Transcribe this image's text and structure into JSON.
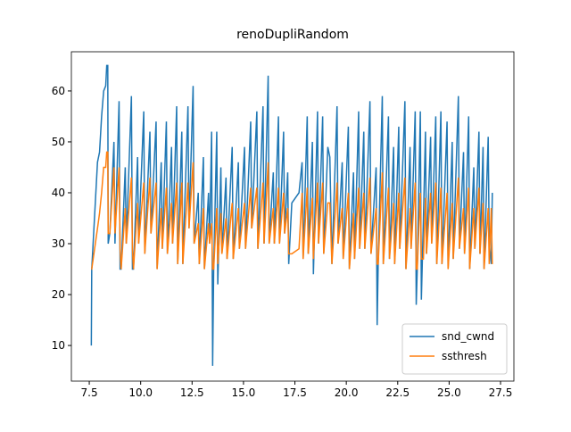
{
  "chart_data": {
    "type": "line",
    "title": "renoDupliRandom",
    "x": [
      7.6,
      7.62,
      7.9,
      8.0,
      8.1,
      8.2,
      8.3,
      8.35,
      8.4,
      8.42,
      8.5,
      8.7,
      8.75,
      8.95,
      9.0,
      9.05,
      9.25,
      9.3,
      9.55,
      9.6,
      9.65,
      9.85,
      9.9,
      10.15,
      10.2,
      10.45,
      10.5,
      10.75,
      10.8,
      11.0,
      11.05,
      11.25,
      11.3,
      11.5,
      11.55,
      11.75,
      11.8,
      12.0,
      12.05,
      12.3,
      12.35,
      12.55,
      12.6,
      12.8,
      12.85,
      13.05,
      13.1,
      13.3,
      13.35,
      13.45,
      13.5,
      13.55,
      13.7,
      13.75,
      13.9,
      13.95,
      14.15,
      14.2,
      14.45,
      14.5,
      14.75,
      14.8,
      15.05,
      15.1,
      15.35,
      15.4,
      15.65,
      15.7,
      15.95,
      16.0,
      16.2,
      16.25,
      16.45,
      16.5,
      16.7,
      16.75,
      16.95,
      17.0,
      17.15,
      17.2,
      17.35,
      17.7,
      17.85,
      17.9,
      18.1,
      18.15,
      18.35,
      18.4,
      18.6,
      18.65,
      18.85,
      18.9,
      19.1,
      19.2,
      19.3,
      19.55,
      19.6,
      19.8,
      19.85,
      20.1,
      20.15,
      20.35,
      20.4,
      20.6,
      20.65,
      20.85,
      20.9,
      21.15,
      21.2,
      21.45,
      21.5,
      21.55,
      21.75,
      21.8,
      22.05,
      22.1,
      22.3,
      22.35,
      22.55,
      22.6,
      22.85,
      22.9,
      23.1,
      23.15,
      23.35,
      23.4,
      23.45,
      23.6,
      23.65,
      23.75,
      23.85,
      23.9,
      24.1,
      24.15,
      24.35,
      24.4,
      24.6,
      24.65,
      24.9,
      24.95,
      25.15,
      25.2,
      25.45,
      25.5,
      25.7,
      25.75,
      25.95,
      26.0,
      26.2,
      26.25,
      26.45,
      26.5,
      26.65,
      26.7,
      26.9,
      26.95,
      27.05,
      27.1
    ],
    "series": [
      {
        "name": "snd_cwnd",
        "color": "#1f77b4",
        "values": [
          10,
          25,
          46,
          48,
          55,
          60,
          61,
          65,
          65,
          30,
          32,
          50,
          30,
          58,
          25,
          25,
          45,
          30,
          59,
          25,
          25,
          47,
          30,
          56,
          28,
          52,
          32,
          54,
          25,
          46,
          29,
          54,
          28,
          49,
          30,
          57,
          26,
          52,
          26,
          57,
          33,
          61,
          30,
          40,
          26,
          47,
          25,
          40,
          30,
          52,
          6,
          25,
          52,
          22,
          45,
          28,
          43,
          27,
          49,
          27,
          46,
          29,
          49,
          29,
          54,
          33,
          56,
          29,
          57,
          30,
          63,
          30,
          44,
          30,
          55,
          30,
          52,
          32,
          44,
          26,
          38,
          40,
          46,
          27,
          55,
          28,
          50,
          24,
          56,
          30,
          55,
          28,
          49,
          47,
          26,
          57,
          30,
          46,
          27,
          53,
          25,
          44,
          27,
          56,
          29,
          52,
          29,
          58,
          28,
          45,
          14,
          26,
          59,
          26,
          55,
          27,
          49,
          26,
          53,
          29,
          58,
          25,
          49,
          29,
          56,
          18,
          25,
          56,
          19,
          35,
          52,
          28,
          51,
          30,
          55,
          26,
          56,
          26,
          54,
          25,
          50,
          27,
          59,
          29,
          48,
          28,
          55,
          25,
          45,
          29,
          52,
          28,
          49,
          25,
          51,
          30,
          26,
          40
        ]
      },
      {
        "name": "ssthresh",
        "color": "#ff7f0e",
        "values": [
          25,
          25,
          33,
          36,
          40,
          45,
          45,
          48,
          48,
          32,
          32,
          45,
          32,
          45,
          29,
          25,
          37,
          30,
          43,
          29,
          25,
          38,
          30,
          42,
          28,
          43,
          32,
          42,
          25,
          37,
          29,
          41,
          28,
          38,
          30,
          42,
          26,
          42,
          26,
          42,
          33,
          46,
          30,
          34,
          26,
          37,
          25,
          34,
          30,
          34,
          25,
          25,
          37,
          26,
          36,
          28,
          35,
          27,
          38,
          27,
          37,
          29,
          38,
          29,
          41,
          33,
          41,
          29,
          42,
          30,
          46,
          30,
          37,
          30,
          41,
          30,
          40,
          32,
          37,
          28,
          28,
          29,
          40,
          27,
          41,
          28,
          39,
          27,
          42,
          30,
          42,
          28,
          38,
          38,
          26,
          42,
          30,
          37,
          27,
          40,
          25,
          36,
          27,
          41,
          29,
          40,
          29,
          43,
          28,
          37,
          26,
          26,
          44,
          26,
          41,
          27,
          38,
          26,
          40,
          29,
          43,
          25,
          37,
          29,
          42,
          25,
          25,
          40,
          27,
          27,
          39,
          28,
          40,
          30,
          42,
          26,
          41,
          26,
          40,
          25,
          38,
          27,
          43,
          29,
          37,
          28,
          41,
          25,
          37,
          29,
          41,
          28,
          38,
          25,
          37,
          26,
          37,
          26
        ]
      }
    ],
    "xlim": [
      6.63,
      28.15
    ],
    "ylim": [
      3.0,
      67.7
    ],
    "xticks": [
      7.5,
      {
        "value": 10.0,
        "label": "10.0"
      },
      12.5,
      {
        "value": 15.0,
        "label": "15.0"
      },
      17.5,
      {
        "value": 20.0,
        "label": "20.0"
      },
      22.5,
      {
        "value": 25.0,
        "label": "25.0"
      },
      27.5
    ],
    "yticks": [
      10,
      20,
      30,
      40,
      50,
      60
    ],
    "legend": "lower right"
  }
}
